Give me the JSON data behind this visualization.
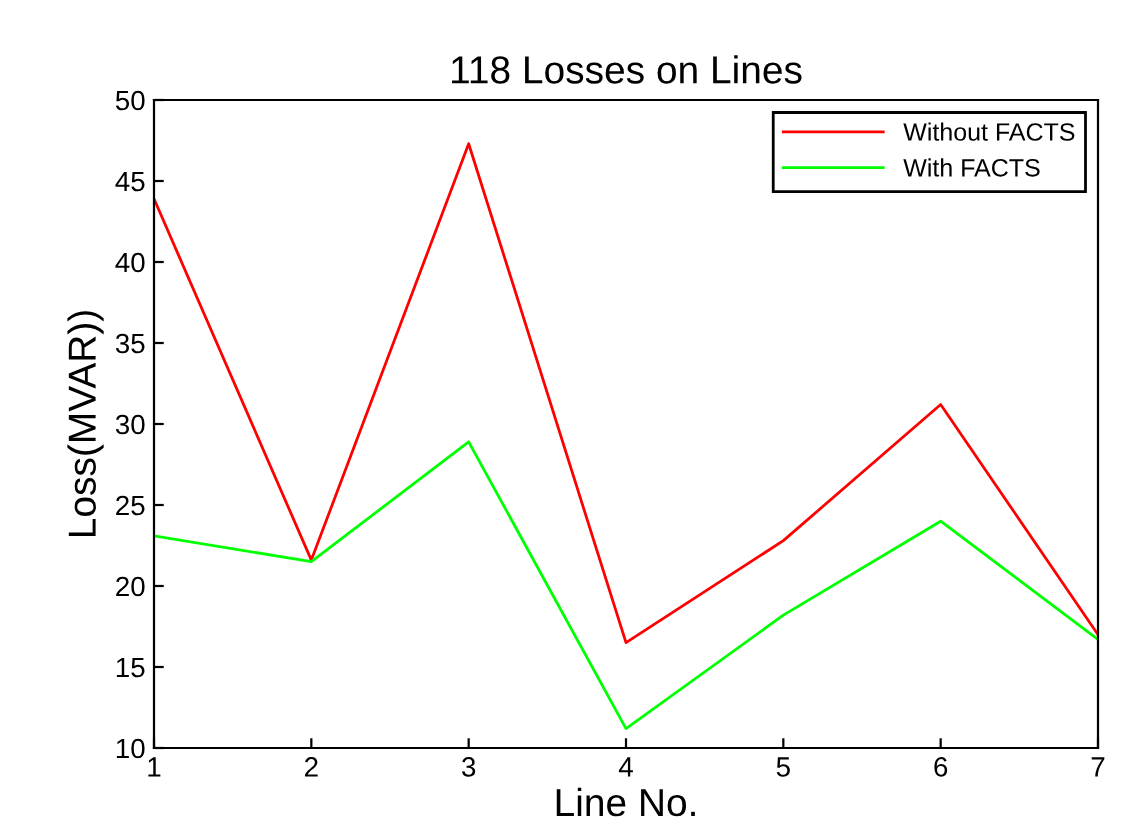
{
  "chart_data": {
    "type": "line",
    "title": "118 Losses on Lines",
    "xlabel": "Line No.",
    "ylabel": "Loss(MVAR))",
    "x": [
      1,
      2,
      3,
      4,
      5,
      6,
      7
    ],
    "series": [
      {
        "name": "Without FACTS",
        "color": "#ff0000",
        "values": [
          43.9,
          21.6,
          47.3,
          16.5,
          22.8,
          31.2,
          17.0
        ]
      },
      {
        "name": "With FACTS",
        "color": "#00ff00",
        "values": [
          23.1,
          21.5,
          28.9,
          11.2,
          18.2,
          24.0,
          16.7
        ]
      }
    ],
    "xlim": [
      1,
      7
    ],
    "xticks": [
      1,
      2,
      3,
      4,
      5,
      6,
      7
    ],
    "ylim": [
      10,
      50
    ],
    "yticks": [
      10,
      15,
      20,
      25,
      30,
      35,
      40,
      45,
      50
    ],
    "grid": false,
    "legend": "top right",
    "marker": "none",
    "line_style": "solid"
  }
}
